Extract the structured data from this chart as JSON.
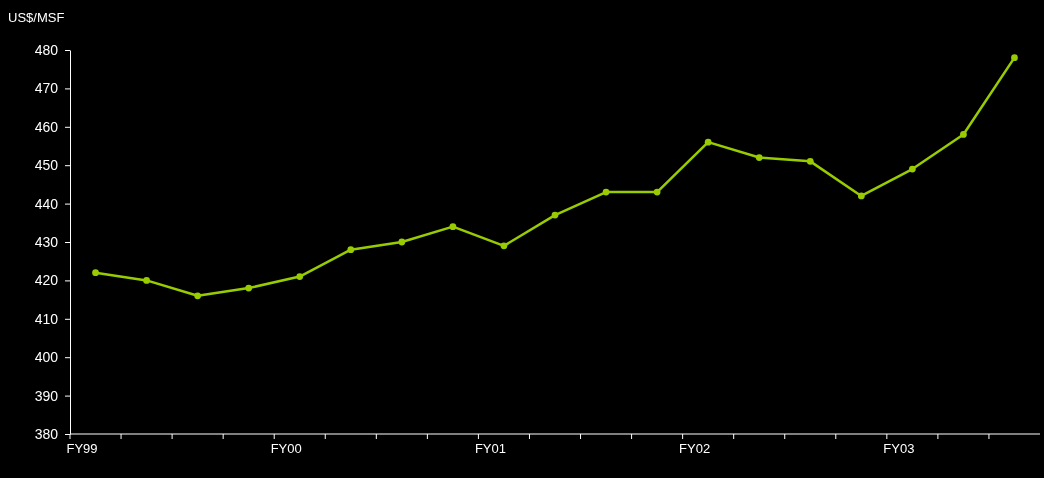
{
  "chart_data": {
    "type": "line",
    "ylabel": "US$/MSF",
    "categories": [
      "FY99",
      null,
      null,
      null,
      "FY00",
      null,
      null,
      null,
      "FY01",
      null,
      null,
      null,
      "FY02",
      null,
      null,
      null,
      "FY03",
      null,
      null
    ],
    "series": [
      {
        "color": "#99cc00",
        "values": [
          422,
          420,
          416,
          418,
          421,
          428,
          430,
          434,
          429,
          437,
          443,
          443,
          456,
          452,
          451,
          442,
          449,
          458,
          478
        ]
      }
    ],
    "ylim": [
      380,
      480
    ],
    "yticks": [
      380,
      390,
      400,
      410,
      420,
      430,
      440,
      450,
      460,
      470,
      480
    ],
    "marker": "circle",
    "line_style": "solid"
  }
}
